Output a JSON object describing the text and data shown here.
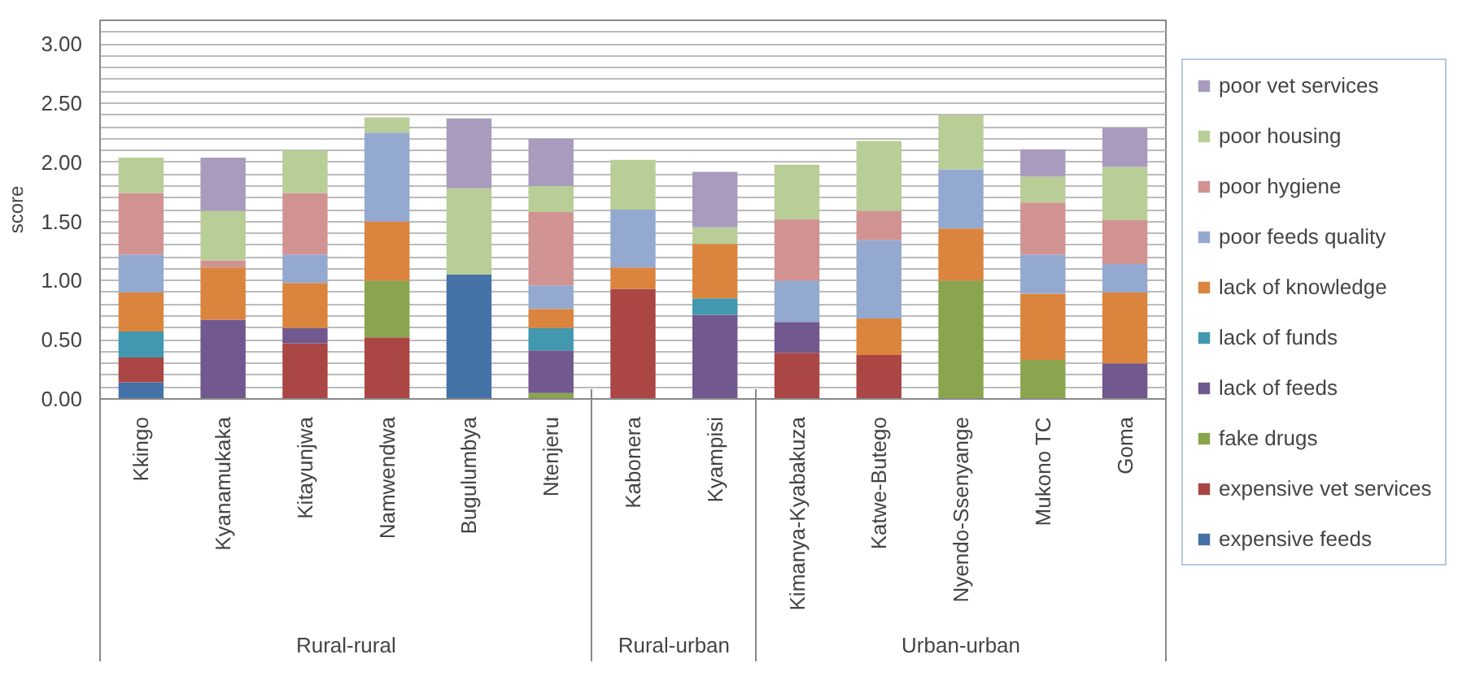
{
  "chart_data": {
    "type": "bar",
    "stacked": true,
    "ylabel": "score",
    "categories": [
      "Kkingo",
      "Kyanamukaka",
      "Kitayunjwa",
      "Namwendwa",
      "Bugulumbya",
      "Ntenjeru",
      "Kabonera",
      "Kyampisi",
      "Kimanya-Kyabakuza",
      "Katwe-Butego",
      "Nyendo-Ssenyange",
      "Mukono TC",
      "Goma"
    ],
    "series": [
      {
        "name": "expensive feeds",
        "color": "#4572a7",
        "values": [
          0.14,
          0,
          0,
          0,
          1.05,
          0,
          0,
          0,
          0,
          0,
          0,
          0,
          0
        ]
      },
      {
        "name": "expensive vet services",
        "color": "#aa4643",
        "values": [
          0.21,
          0,
          0.47,
          0.52,
          0,
          0,
          0.93,
          0,
          0.39,
          0.37,
          0,
          0,
          0
        ]
      },
      {
        "name": "fake drugs",
        "color": "#89a54e",
        "values": [
          0,
          0,
          0,
          0.48,
          0,
          0.05,
          0,
          0,
          0,
          0,
          1.0,
          0.33,
          0
        ]
      },
      {
        "name": "lack of feeds",
        "color": "#71588f",
        "values": [
          0,
          0.67,
          0.13,
          0,
          0,
          0.36,
          0,
          0.71,
          0.26,
          0,
          0,
          0,
          0.3
        ]
      },
      {
        "name": "lack of funds",
        "color": "#4198af",
        "values": [
          0.22,
          0,
          0,
          0,
          0,
          0.19,
          0,
          0.14,
          0,
          0,
          0,
          0,
          0
        ]
      },
      {
        "name": "lack of knowledge",
        "color": "#db843d",
        "values": [
          0.33,
          0.44,
          0.38,
          0.5,
          0,
          0.16,
          0.18,
          0.46,
          0,
          0.31,
          0.44,
          0.56,
          0.6
        ]
      },
      {
        "name": "poor feeds quality",
        "color": "#93a9cf",
        "values": [
          0.32,
          0,
          0.24,
          0.75,
          0,
          0.2,
          0.49,
          0,
          0.35,
          0.66,
          0.5,
          0.33,
          0.24
        ]
      },
      {
        "name": "poor hygiene",
        "color": "#d19392",
        "values": [
          0.52,
          0.06,
          0.52,
          0,
          0,
          0.62,
          0,
          0,
          0.52,
          0.25,
          0,
          0.44,
          0.37
        ]
      },
      {
        "name": "poor housing",
        "color": "#b9cd96",
        "values": [
          0.3,
          0.42,
          0.36,
          0.13,
          0.73,
          0.22,
          0.42,
          0.14,
          0.46,
          0.59,
          0.46,
          0.22,
          0.45
        ]
      },
      {
        "name": "poor vet services",
        "color": "#a99bbd",
        "values": [
          0,
          0.45,
          0,
          0,
          0.59,
          0.4,
          0,
          0.47,
          0,
          0,
          0,
          0.23,
          0.33
        ]
      }
    ],
    "ylim": [
      0,
      3.2
    ],
    "yticks": [
      {
        "value": 0,
        "label": "0.00"
      },
      {
        "value": 0.1,
        "label": null
      },
      {
        "value": 0.2,
        "label": null
      },
      {
        "value": 0.3,
        "label": null
      },
      {
        "value": 0.4,
        "label": null
      },
      {
        "value": 0.5,
        "label": "0.50"
      },
      {
        "value": 0.6,
        "label": null
      },
      {
        "value": 0.7,
        "label": null
      },
      {
        "value": 0.8,
        "label": null
      },
      {
        "value": 0.9,
        "label": null
      },
      {
        "value": 1.0,
        "label": "1.00"
      },
      {
        "value": 1.1,
        "label": null
      },
      {
        "value": 1.2,
        "label": null
      },
      {
        "value": 1.3,
        "label": null
      },
      {
        "value": 1.4,
        "label": null
      },
      {
        "value": 1.5,
        "label": "1.50"
      },
      {
        "value": 1.6,
        "label": null
      },
      {
        "value": 1.7,
        "label": null
      },
      {
        "value": 1.8,
        "label": null
      },
      {
        "value": 1.9,
        "label": null
      },
      {
        "value": 2.0,
        "label": "2.00"
      },
      {
        "value": 2.1,
        "label": null
      },
      {
        "value": 2.2,
        "label": null
      },
      {
        "value": 2.3,
        "label": null
      },
      {
        "value": 2.4,
        "label": null
      },
      {
        "value": 2.5,
        "label": "2.50"
      },
      {
        "value": 2.6,
        "label": null
      },
      {
        "value": 2.7,
        "label": null
      },
      {
        "value": 2.8,
        "label": null
      },
      {
        "value": 2.9,
        "label": null
      },
      {
        "value": 3.0,
        "label": "3.00"
      },
      {
        "value": 3.1,
        "label": null
      },
      {
        "value": 3.2,
        "label": null
      }
    ],
    "grid": "y",
    "legend": "right",
    "annotations": [
      "Rural-rural",
      "Rural-urban",
      "Urban-urban"
    ]
  }
}
